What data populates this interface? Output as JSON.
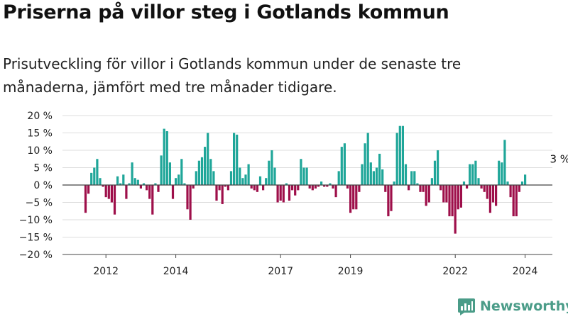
{
  "title": "Priserna på villor steg i Gotlands kommun",
  "subtitle": "Prisutveckling för villor i Gotlands kommun under de senaste tre månaderna, jämfört med tre månader tidigare.",
  "brand": {
    "name": "Newsworthy",
    "icon": "newsworthy-logo-icon"
  },
  "colors": {
    "positive": "#1fa699",
    "negative": "#9e0f4a",
    "grid": "#dddddd",
    "axis": "#444444",
    "text": "#222222"
  },
  "chart_data": {
    "type": "bar",
    "title": "",
    "xlabel": "",
    "ylabel": "",
    "ylim": [
      -20,
      20
    ],
    "yticks": [
      20,
      15,
      10,
      5,
      0,
      -5,
      -10,
      -15,
      -20
    ],
    "ytick_labels": [
      "20 %",
      "15 %",
      "10 %",
      "5 %",
      "0 %",
      "−5 %",
      "−10 %",
      "−15 %",
      "−20 %"
    ],
    "xticks": [
      {
        "label": "2012",
        "index": 7
      },
      {
        "label": "2014",
        "index": 31
      },
      {
        "label": "2017",
        "index": 67
      },
      {
        "label": "2019",
        "index": 91
      },
      {
        "label": "2022",
        "index": 127
      },
      {
        "label": "2024",
        "index": 151
      }
    ],
    "annotation": {
      "text": "3 %",
      "index": 163
    },
    "grid": true,
    "values": [
      -8,
      -2.5,
      3.5,
      5,
      7.5,
      2,
      -0.5,
      -3.5,
      -4,
      -5,
      -8.5,
      2.5,
      0.5,
      3,
      -4,
      0.5,
      6.5,
      2,
      1.5,
      -1,
      0.5,
      -1.5,
      -4,
      -8.5,
      0.5,
      -2,
      8.5,
      16.2,
      15.5,
      6.5,
      -4,
      2,
      3,
      7.5,
      0.5,
      -7,
      -10,
      -1,
      4,
      7,
      8,
      11,
      15,
      7.5,
      4,
      -4.5,
      -1.5,
      -5.5,
      -0.5,
      -1.5,
      4,
      15,
      14.5,
      5,
      2,
      3,
      6,
      -1,
      -1.5,
      -2,
      2.5,
      -1.5,
      2,
      7,
      10,
      5,
      -5,
      -4.5,
      -5,
      0.5,
      -4.5,
      -1.5,
      -3,
      -1.5,
      7.5,
      5,
      5,
      -1,
      -1.5,
      -1,
      -0.5,
      1,
      -0.5,
      -0.5,
      0.5,
      -1,
      -3.5,
      4,
      11,
      12,
      -1,
      -8,
      -7,
      -7,
      -2,
      6,
      12,
      15,
      6.5,
      4,
      5,
      9,
      4.5,
      -2,
      -9,
      -7.5,
      1,
      15,
      17,
      17,
      6,
      -1.5,
      4,
      4,
      0.5,
      -2,
      -2,
      -6,
      -5,
      2,
      7,
      10,
      -1.5,
      -5,
      -5,
      -9,
      -9,
      -14,
      -7,
      -6.5,
      1,
      -1,
      6,
      6,
      7,
      2,
      -1,
      -2,
      -4,
      -8,
      -5,
      -6,
      7,
      6.5,
      13,
      1,
      -3.5,
      -9,
      -9,
      -2,
      1,
      3
    ]
  }
}
